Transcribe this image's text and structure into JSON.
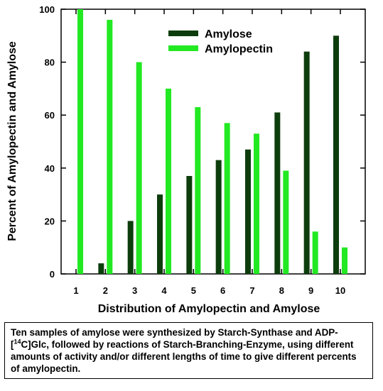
{
  "chart_data": {
    "type": "bar",
    "categories": [
      "1",
      "2",
      "3",
      "4",
      "5",
      "6",
      "7",
      "8",
      "9",
      "10"
    ],
    "series": [
      {
        "name": "Amylose",
        "color": "#0d3d0d",
        "values": [
          0,
          4,
          20,
          30,
          37,
          43,
          47,
          61,
          84,
          90
        ]
      },
      {
        "name": "Amylopectin",
        "color": "#22e922",
        "values": [
          100,
          96,
          80,
          70,
          63,
          57,
          53,
          39,
          16,
          10
        ]
      }
    ],
    "title": "",
    "xlabel": "Distribution of Amylopectin and Amylose",
    "ylabel": "Percent of Amylopectin and Amylose",
    "ylim": [
      0,
      100
    ],
    "yticks": [
      "0",
      "20",
      "40",
      "60",
      "80",
      "100"
    ],
    "grid": false,
    "legend_position": "top-right"
  },
  "caption": {
    "before": "Ten samples of amylose were synthesized by Starch-Synthase and ADP-[",
    "sup": "14",
    "after": "C]Glc, followed by reactions of Starch-Branching-Enzyme, using different amounts of activity and/or different lengths of time to give different percents of amylopectin."
  }
}
